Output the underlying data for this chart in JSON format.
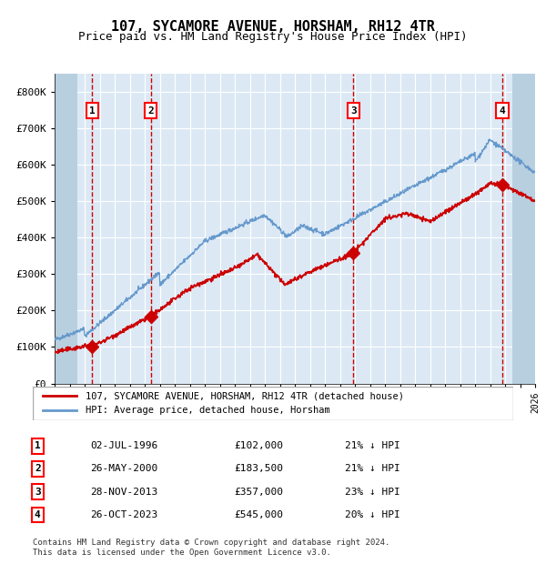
{
  "title": "107, SYCAMORE AVENUE, HORSHAM, RH12 4TR",
  "subtitle": "Price paid vs. HM Land Registry's House Price Index (HPI)",
  "hpi_label": "HPI: Average price, detached house, Horsham",
  "property_label": "107, SYCAMORE AVENUE, HORSHAM, RH12 4TR (detached house)",
  "footer": "Contains HM Land Registry data © Crown copyright and database right 2024.\nThis data is licensed under the Open Government Licence v3.0.",
  "sales": [
    {
      "num": 1,
      "date": "02-JUL-1996",
      "year": 1996.5,
      "price": 102000,
      "pct": "21%",
      "dir": "↓"
    },
    {
      "num": 2,
      "date": "26-MAY-2000",
      "year": 2000.4,
      "price": 183500,
      "pct": "21%",
      "dir": "↓"
    },
    {
      "num": 3,
      "date": "28-NOV-2013",
      "year": 2013.9,
      "price": 357000,
      "pct": "23%",
      "dir": "↓"
    },
    {
      "num": 4,
      "date": "26-OCT-2023",
      "year": 2023.82,
      "price": 545000,
      "pct": "20%",
      "dir": "↓"
    }
  ],
  "xmin": 1994,
  "xmax": 2026,
  "ymin": 0,
  "ymax": 850000,
  "yticks": [
    0,
    100000,
    200000,
    300000,
    400000,
    500000,
    600000,
    700000,
    800000
  ],
  "ytick_labels": [
    "£0",
    "£100K",
    "£200K",
    "£300K",
    "£400K",
    "£500K",
    "£600K",
    "£700K",
    "£800K"
  ],
  "background_color": "#dce9f5",
  "plot_bg_color": "#dce9f5",
  "hatch_color": "#b8cfe0",
  "grid_color": "#ffffff",
  "red_line_color": "#cc0000",
  "blue_line_color": "#6699cc",
  "dashed_color": "#cc0000",
  "marker_color": "#cc0000",
  "legend_box_color": "#ffffff",
  "legend_border_color": "#aaaaaa"
}
